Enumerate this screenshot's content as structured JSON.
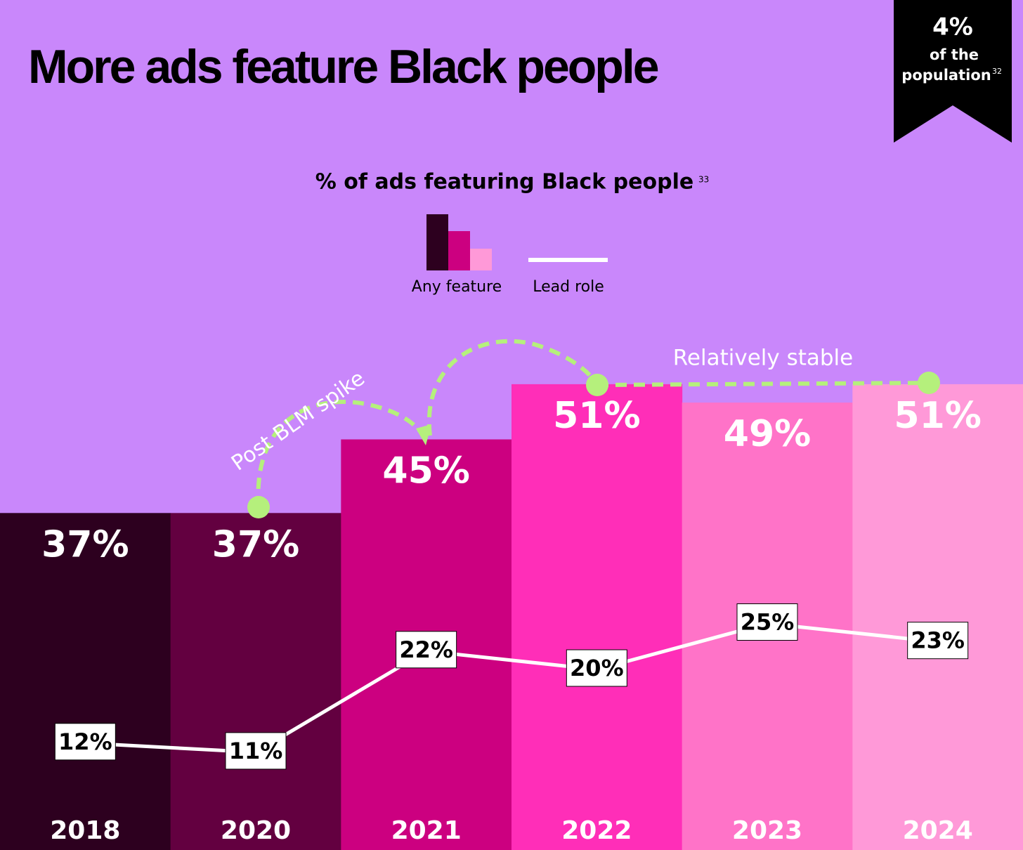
{
  "header": {
    "title": "More ads feature Black people"
  },
  "badge": {
    "figure": "4%",
    "line1": "of the",
    "line2": "population",
    "note": "32"
  },
  "chart_data": {
    "type": "bar",
    "title": "% of ads featuring Black people",
    "title_note": "33",
    "categories": [
      "2018",
      "2020",
      "2021",
      "2022",
      "2023",
      "2024"
    ],
    "series": [
      {
        "name": "Any feature",
        "colors": [
          "#2d001f",
          "#630040",
          "#cc0080",
          "#ff2eb8",
          "#ff73c8",
          "#ff99d8"
        ],
        "values": [
          37,
          37,
          45,
          51,
          49,
          51
        ],
        "value_labels": [
          "37%",
          "37%",
          "45%",
          "51%",
          "49%",
          "51%"
        ]
      },
      {
        "name": "Lead role",
        "type": "line",
        "color": "#ffffff",
        "values": [
          12,
          11,
          22,
          20,
          25,
          23
        ],
        "value_labels": [
          "12%",
          "11%",
          "22%",
          "20%",
          "25%",
          "23%"
        ]
      }
    ],
    "annotations": [
      "Post BLM spike",
      "Relatively stable"
    ]
  }
}
